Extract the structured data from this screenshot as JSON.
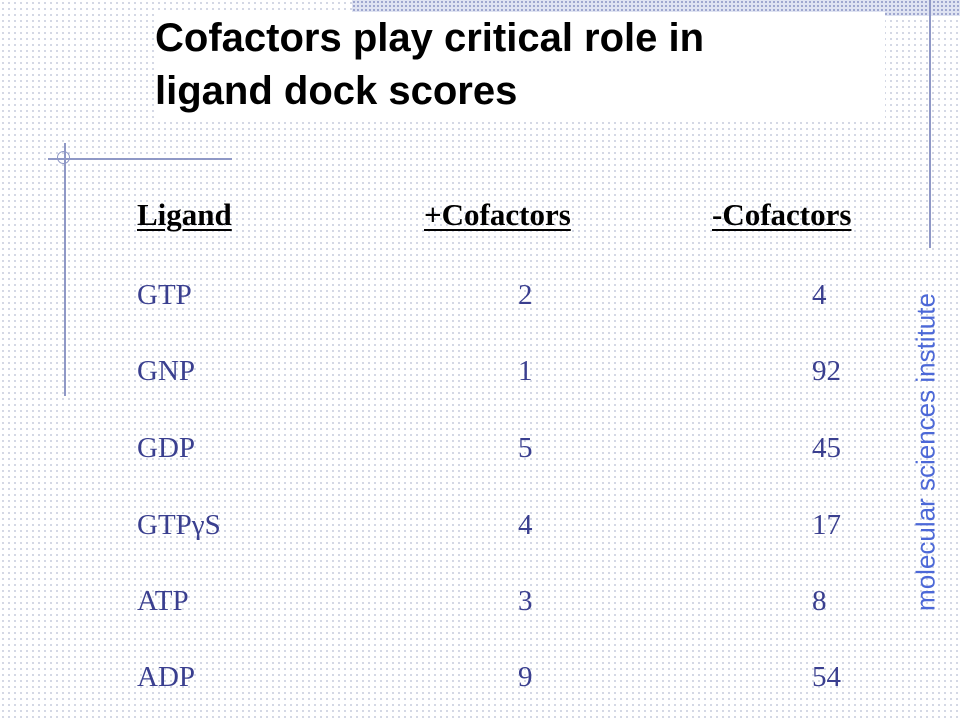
{
  "slide": {
    "title_line1": "Cofactors play critical role in",
    "title_line2": "ligand dock scores",
    "side_text": "molecular sciences institute"
  },
  "table": {
    "headers": [
      "Ligand",
      "+Cofactors",
      "-Cofactors"
    ],
    "rows": [
      {
        "ligand": "GTP",
        "plus": "2",
        "minus": "4"
      },
      {
        "ligand": "GNP",
        "plus": "1",
        "minus": "92"
      },
      {
        "ligand": "GDP",
        "plus": "5",
        "minus": "45"
      },
      {
        "ligand": "GTPγS",
        "plus": "4",
        "minus": "17"
      },
      {
        "ligand": "ATP",
        "plus": "3",
        "minus": "8"
      },
      {
        "ligand": "ADP",
        "plus": "9",
        "minus": "54"
      }
    ]
  },
  "colors": {
    "accent_line": "#8f98c6",
    "table_text": "#3a3f8f",
    "side_text": "#4c68d7"
  }
}
